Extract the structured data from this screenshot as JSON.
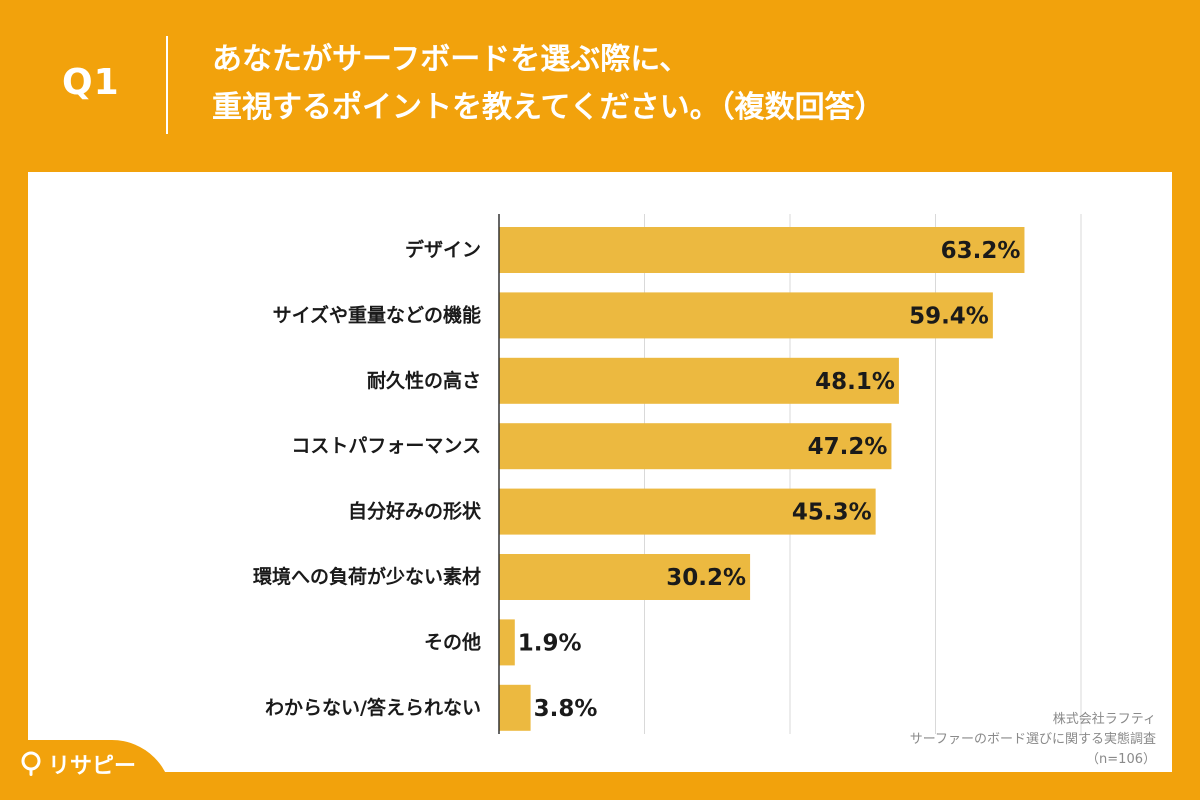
{
  "header": {
    "q_label": "Q1",
    "title_line1": "あなたがサーフボードを選ぶ際に、",
    "title_line2": "重視するポイントを教えてください。（複数回答）"
  },
  "brand": {
    "icon": "lightbulb-icon",
    "name": "リサピー"
  },
  "source": {
    "company": "株式会社ラフティ",
    "survey": "サーファーのボード選びに関する実態調査",
    "sample": "（n=106）"
  },
  "colors": {
    "background": "#f2a20c",
    "bar": "#ecb940",
    "grid": "#d9d9d9",
    "axis": "#333333"
  },
  "chart_data": {
    "type": "bar",
    "orientation": "horizontal",
    "title": "あなたがサーフボードを選ぶ際に、重視するポイントを教えてください。（複数回答）",
    "categories": [
      "デザイン",
      "サイズや重量などの機能",
      "耐久性の高さ",
      "コストパフォーマンス",
      "自分好みの形状",
      "環境への負荷が少ない素材",
      "その他",
      "わからない/答えられない"
    ],
    "values": [
      63.2,
      59.4,
      48.1,
      47.2,
      45.3,
      30.2,
      1.9,
      3.8
    ],
    "value_labels": [
      "63.2%",
      "59.4%",
      "48.1%",
      "47.2%",
      "45.3%",
      "30.2%",
      "1.9%",
      "3.8%"
    ],
    "unit": "%",
    "xlim": [
      0,
      70
    ],
    "grid": true,
    "grid_step": 17.5
  }
}
